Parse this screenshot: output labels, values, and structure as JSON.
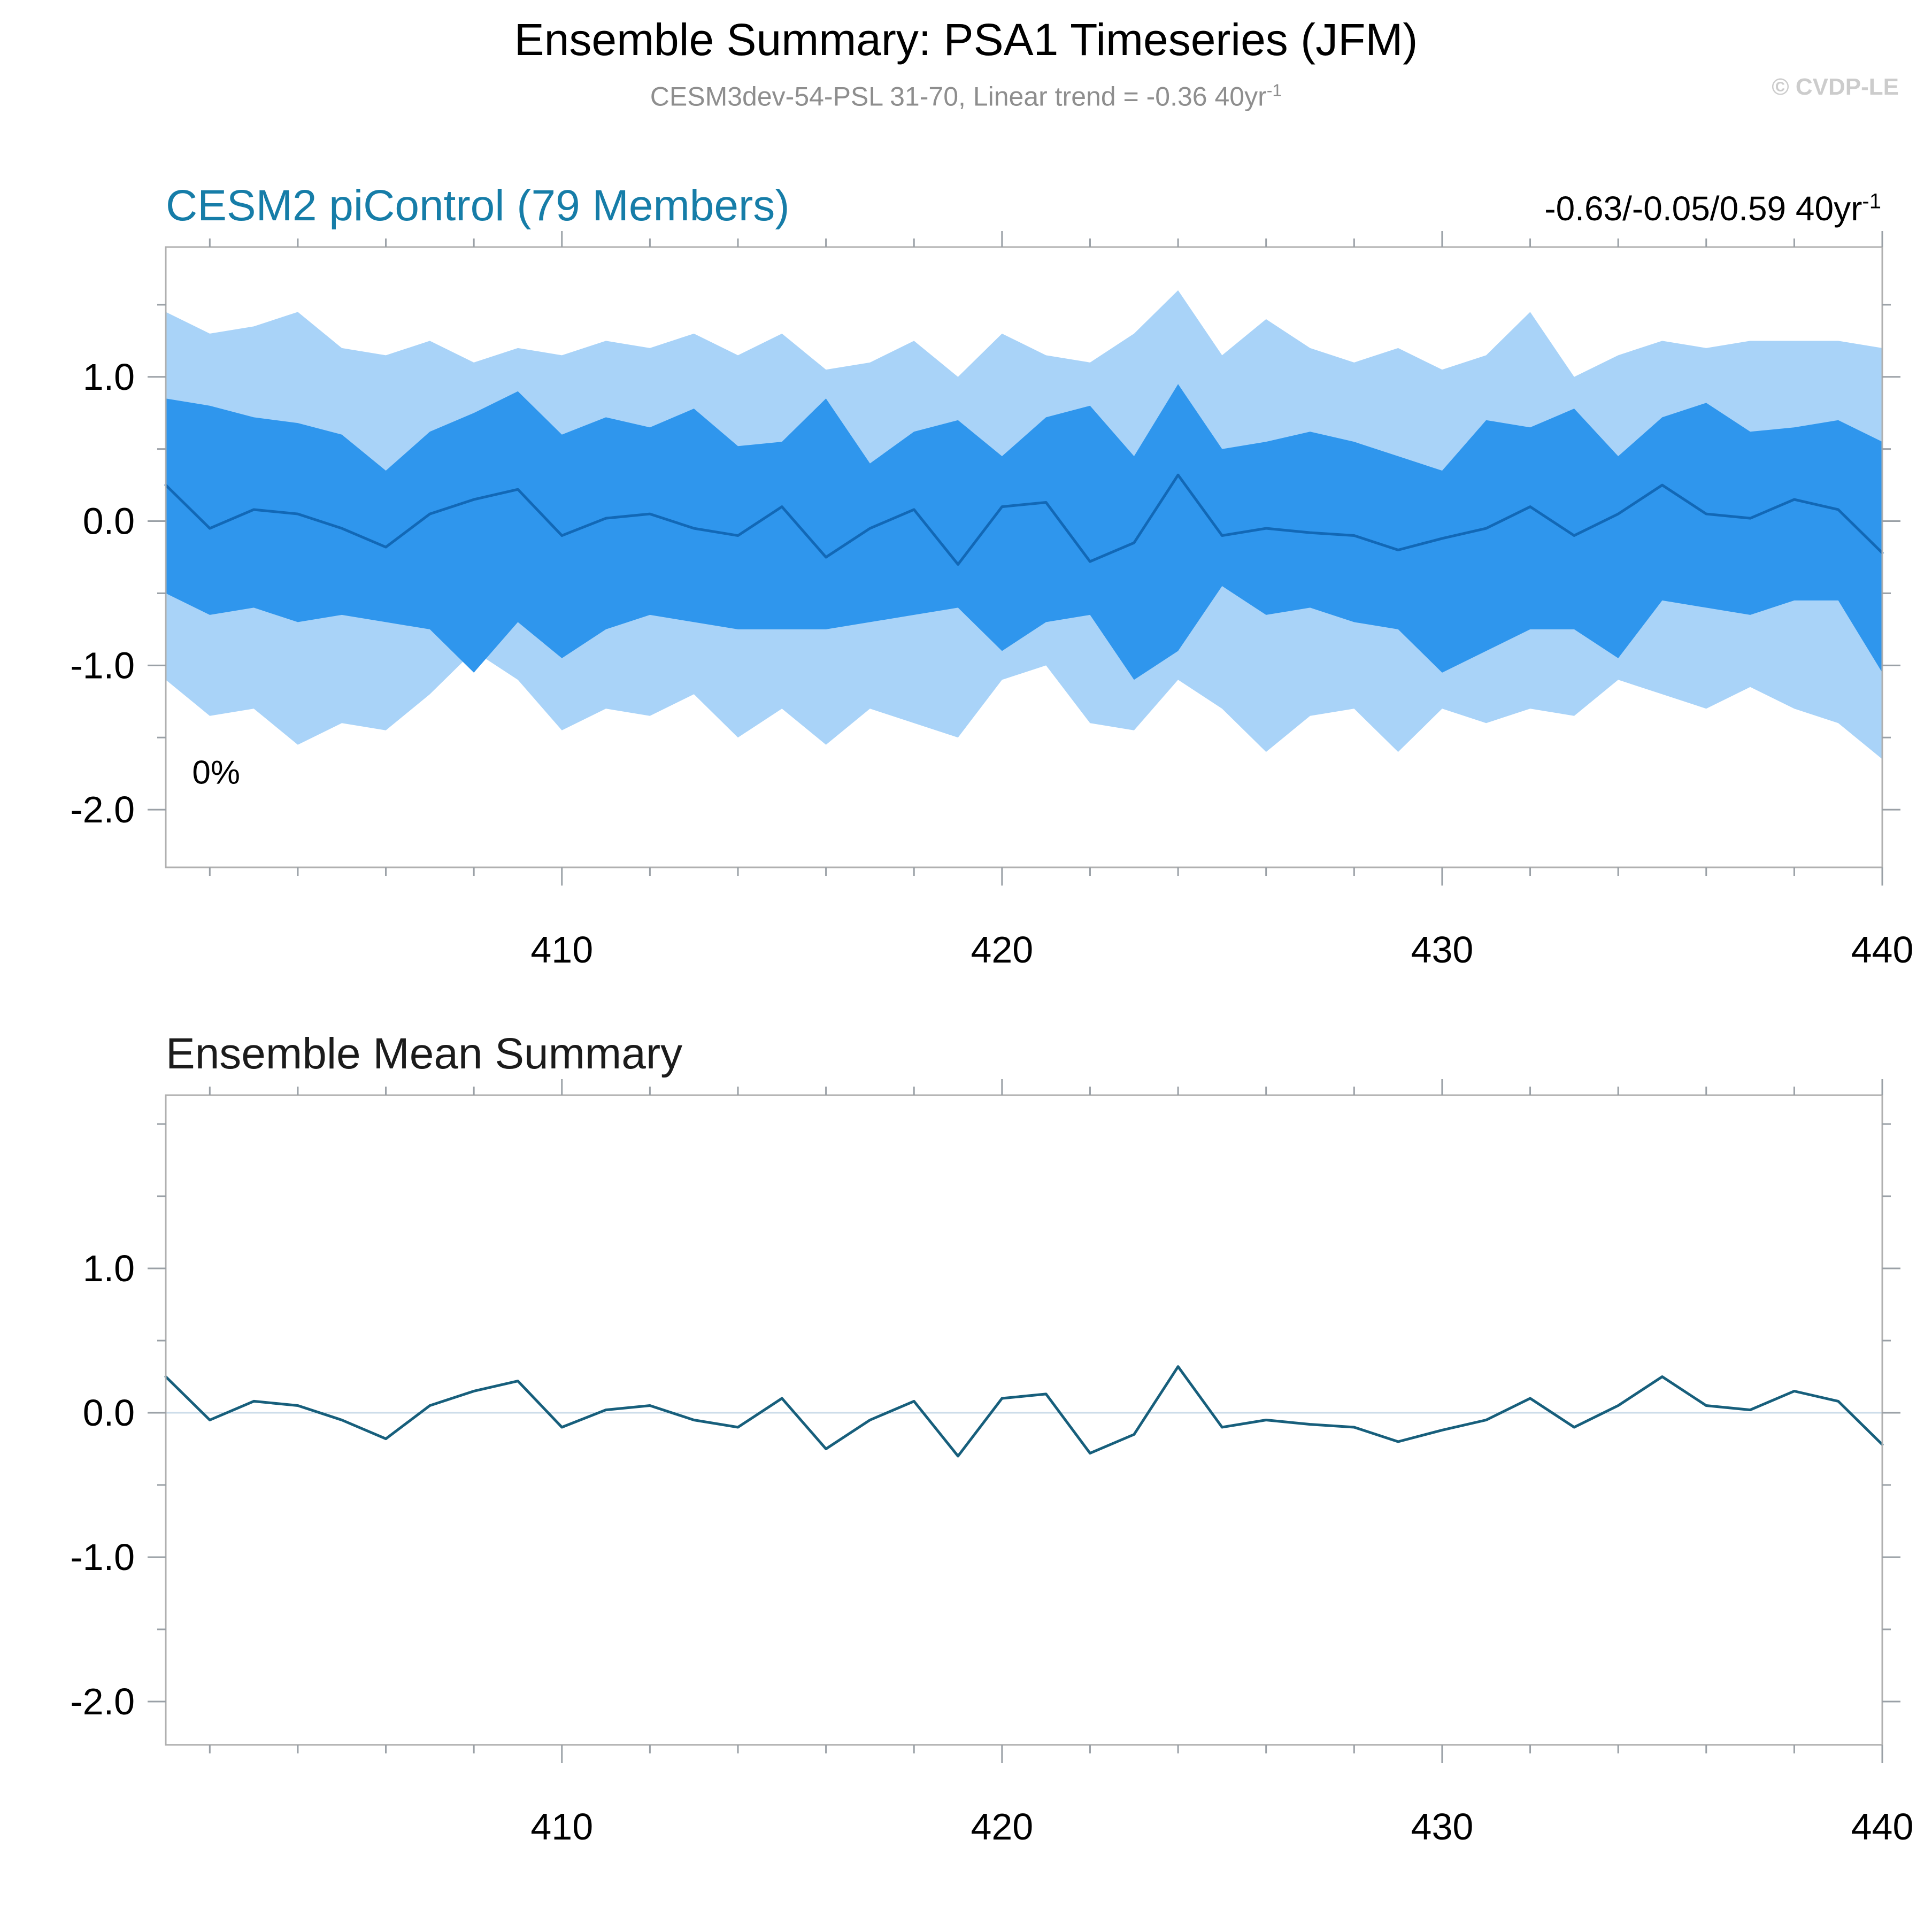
{
  "header": {
    "title": "Ensemble Summary: PSA1 Timeseries (JFM)",
    "subtitle": "CESM3dev-54-PSL 31-70, Linear trend = -0.36 40yr",
    "subtitle_sup": "-1",
    "watermark": "© CVDP-LE"
  },
  "panels": [
    {
      "title": "CESM2 piControl (79 Members)",
      "stats": "-0.63/-0.05/0.59 40yr",
      "stats_sup": "-1"
    },
    {
      "title": "Ensemble Mean Summary"
    }
  ],
  "colors": {
    "outer_band": "#a9d3f8",
    "inner_band": "#2f96ed",
    "mean_line_top": "#1268b6",
    "mean_line_bottom": "#175f7c",
    "zero_line": "#ccdcea",
    "axis": "#b0b0b0",
    "tick": "#9aa0a6",
    "panel_title_teal": "#167da8"
  },
  "chart_data": [
    {
      "type": "area",
      "name": "ensemble-spread-chart",
      "title": "CESM2 piControl (79 Members)",
      "annotation": "0%",
      "annotations": [
        "0%",
        "-0.63/-0.05/0.59 40yr⁻¹"
      ],
      "legend_position": "none",
      "grid": "zero-line-only",
      "x": [
        401,
        402,
        403,
        404,
        405,
        406,
        407,
        408,
        409,
        410,
        411,
        412,
        413,
        414,
        415,
        416,
        417,
        418,
        419,
        420,
        421,
        422,
        423,
        424,
        425,
        426,
        427,
        428,
        429,
        430,
        431,
        432,
        433,
        434,
        435,
        436,
        437,
        438,
        439,
        440
      ],
      "series": [
        {
          "name": "min-max-band",
          "kind": "band",
          "color": "#a9d3f8",
          "upper": [
            1.45,
            1.3,
            1.35,
            1.45,
            1.2,
            1.15,
            1.25,
            1.1,
            1.2,
            1.15,
            1.25,
            1.2,
            1.3,
            1.15,
            1.3,
            1.05,
            1.1,
            1.25,
            1.0,
            1.3,
            1.15,
            1.1,
            1.3,
            1.6,
            1.15,
            1.4,
            1.2,
            1.1,
            1.2,
            1.05,
            1.15,
            1.45,
            1.0,
            1.15,
            1.25,
            1.2,
            1.25,
            1.25,
            1.25,
            1.2
          ],
          "lower": [
            -1.1,
            -1.35,
            -1.3,
            -1.55,
            -1.4,
            -1.45,
            -1.2,
            -0.9,
            -1.1,
            -1.45,
            -1.3,
            -1.35,
            -1.2,
            -1.5,
            -1.3,
            -1.55,
            -1.3,
            -1.4,
            -1.5,
            -1.1,
            -1.0,
            -1.4,
            -1.45,
            -1.1,
            -1.3,
            -1.6,
            -1.35,
            -1.3,
            -1.6,
            -1.3,
            -1.4,
            -1.3,
            -1.35,
            -1.1,
            -1.2,
            -1.3,
            -1.15,
            -1.3,
            -1.4,
            -1.65
          ]
        },
        {
          "name": "central-spread-band",
          "kind": "band",
          "color": "#2f96ed",
          "upper": [
            0.85,
            0.8,
            0.72,
            0.68,
            0.6,
            0.35,
            0.62,
            0.75,
            0.9,
            0.6,
            0.72,
            0.65,
            0.78,
            0.52,
            0.55,
            0.85,
            0.4,
            0.62,
            0.7,
            0.45,
            0.72,
            0.8,
            0.45,
            0.95,
            0.5,
            0.55,
            0.62,
            0.55,
            0.45,
            0.35,
            0.7,
            0.65,
            0.78,
            0.45,
            0.72,
            0.82,
            0.62,
            0.65,
            0.7,
            0.55
          ],
          "lower": [
            -0.5,
            -0.65,
            -0.6,
            -0.7,
            -0.65,
            -0.7,
            -0.75,
            -1.05,
            -0.7,
            -0.95,
            -0.75,
            -0.65,
            -0.7,
            -0.75,
            -0.75,
            -0.75,
            -0.7,
            -0.65,
            -0.6,
            -0.9,
            -0.7,
            -0.65,
            -1.1,
            -0.9,
            -0.45,
            -0.65,
            -0.6,
            -0.7,
            -0.75,
            -1.05,
            -0.9,
            -0.75,
            -0.75,
            -0.95,
            -0.55,
            -0.6,
            -0.65,
            -0.55,
            -0.55,
            -1.05
          ]
        },
        {
          "name": "ensemble-mean",
          "kind": "line",
          "color": "#1268b6",
          "width": 5,
          "values": [
            0.25,
            -0.05,
            0.08,
            0.05,
            -0.05,
            -0.18,
            0.05,
            0.15,
            0.22,
            -0.1,
            0.02,
            0.05,
            -0.05,
            -0.1,
            0.1,
            -0.25,
            -0.05,
            0.08,
            -0.3,
            0.1,
            0.13,
            -0.28,
            -0.15,
            0.32,
            -0.1,
            -0.05,
            -0.08,
            -0.1,
            -0.2,
            -0.12,
            -0.05,
            0.1,
            -0.1,
            0.05,
            0.25,
            0.05,
            0.02,
            0.15,
            0.08,
            -0.22
          ]
        }
      ],
      "xlim": [
        401,
        440
      ],
      "ylim": [
        -2.4,
        1.9
      ],
      "xticks": [
        410,
        420,
        430,
        440
      ],
      "yticks": [
        -2,
        -1,
        0,
        1
      ],
      "ytick_labels": [
        "-2.0",
        "-1.0",
        "0.0",
        "1.0"
      ],
      "x_minor_step": 2,
      "y_minor_step": 0.5,
      "zero_line_color": "#ccdcea",
      "axis_color": "#b0b0b0",
      "tick_color": "#9aa0a6"
    },
    {
      "type": "line",
      "name": "ensemble-mean-chart",
      "title": "Ensemble Mean Summary",
      "legend_position": "none",
      "grid": "zero-line-only",
      "x": [
        401,
        402,
        403,
        404,
        405,
        406,
        407,
        408,
        409,
        410,
        411,
        412,
        413,
        414,
        415,
        416,
        417,
        418,
        419,
        420,
        421,
        422,
        423,
        424,
        425,
        426,
        427,
        428,
        429,
        430,
        431,
        432,
        433,
        434,
        435,
        436,
        437,
        438,
        439,
        440
      ],
      "series": [
        {
          "name": "ensemble-mean",
          "kind": "line",
          "color": "#175f7c",
          "width": 5,
          "values": [
            0.25,
            -0.05,
            0.08,
            0.05,
            -0.05,
            -0.18,
            0.05,
            0.15,
            0.22,
            -0.1,
            0.02,
            0.05,
            -0.05,
            -0.1,
            0.1,
            -0.25,
            -0.05,
            0.08,
            -0.3,
            0.1,
            0.13,
            -0.28,
            -0.15,
            0.32,
            -0.1,
            -0.05,
            -0.08,
            -0.1,
            -0.2,
            -0.12,
            -0.05,
            0.1,
            -0.1,
            0.05,
            0.25,
            0.05,
            0.02,
            0.15,
            0.08,
            -0.22
          ]
        }
      ],
      "xlim": [
        401,
        440
      ],
      "ylim": [
        -2.3,
        2.2
      ],
      "xticks": [
        410,
        420,
        430,
        440
      ],
      "yticks": [
        -2,
        -1,
        0,
        1
      ],
      "ytick_labels": [
        "-2.0",
        "-1.0",
        "0.0",
        "1.0"
      ],
      "x_minor_step": 2,
      "y_minor_step": 0.5,
      "zero_line_color": "#ccdcea",
      "axis_color": "#b0b0b0",
      "tick_color": "#9aa0a6"
    }
  ]
}
